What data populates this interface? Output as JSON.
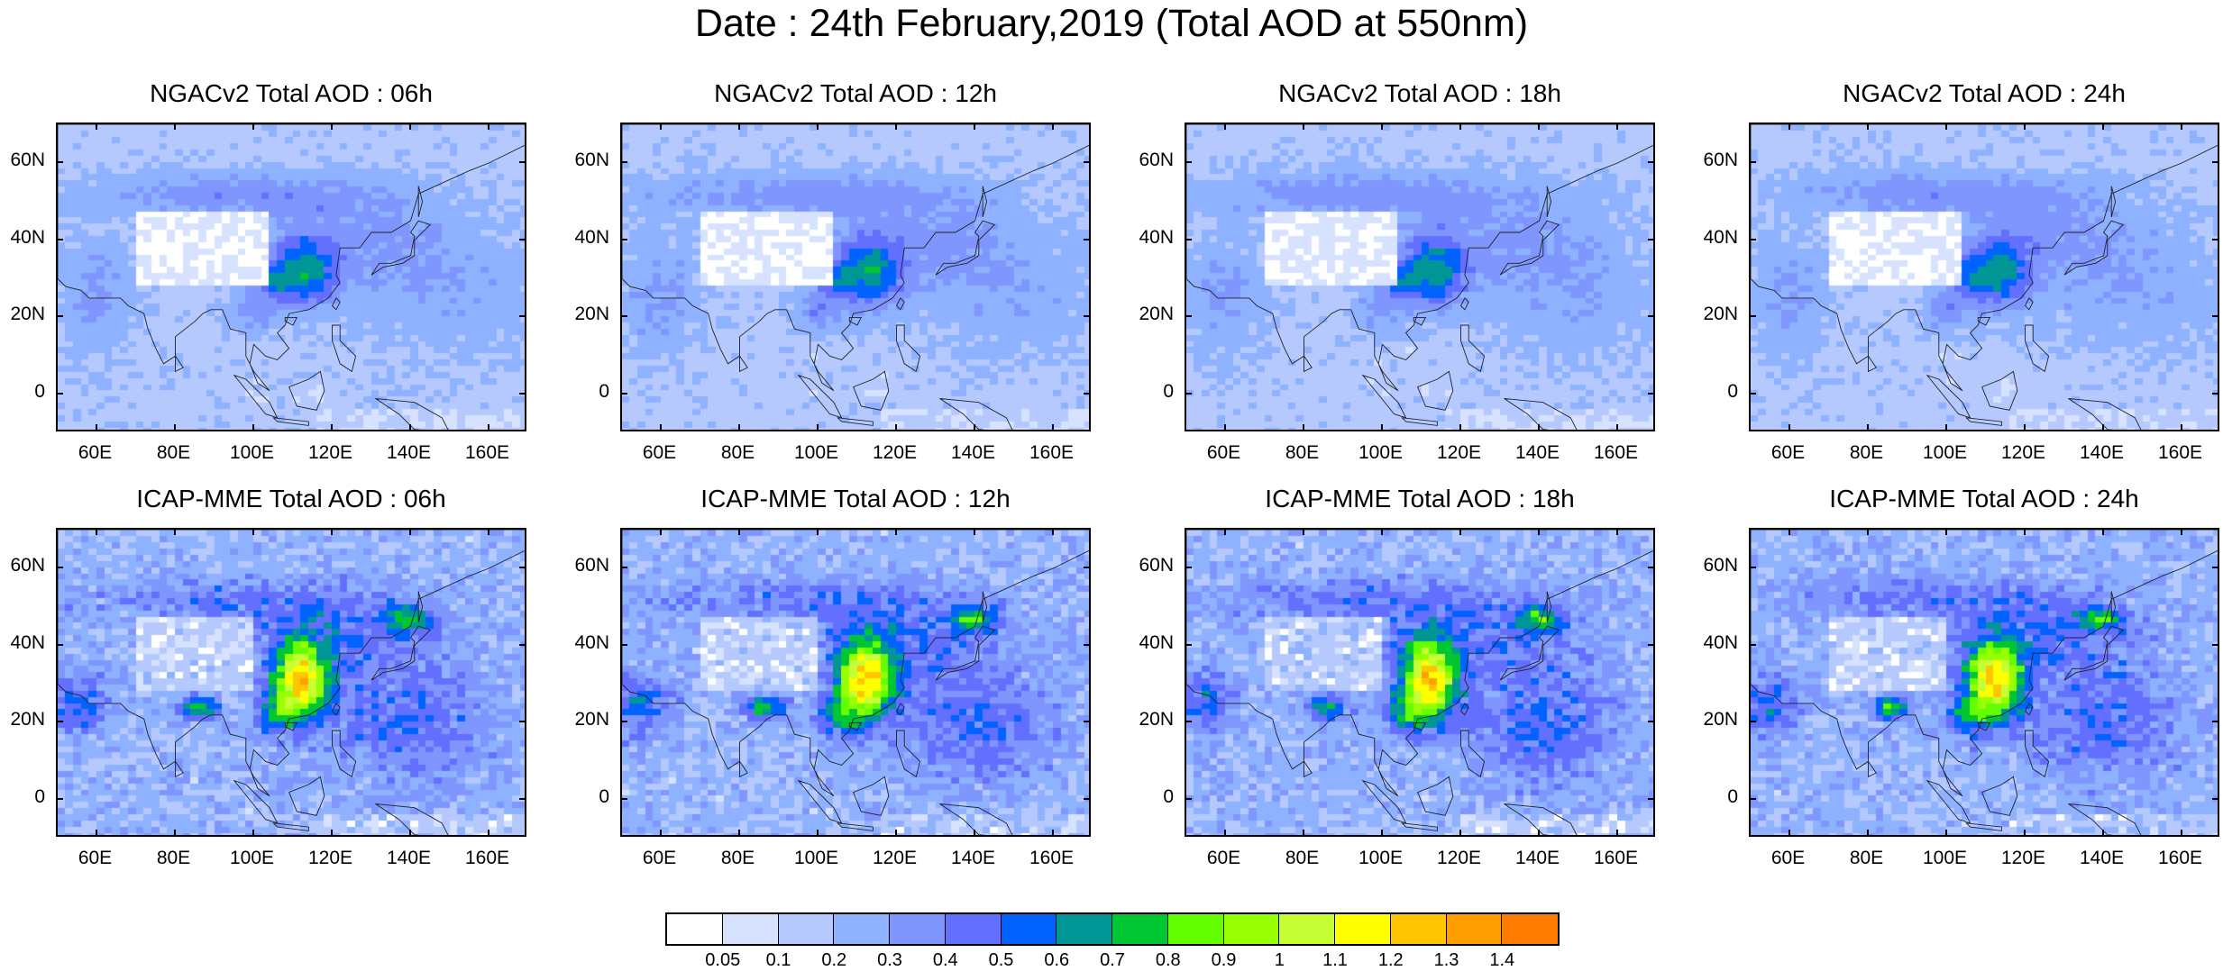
{
  "title": "Date : 24th February,2019 (Total AOD at 550nm)",
  "panels": [
    {
      "title": "NGACv2 Total AOD : 06h",
      "model": "NGACv2",
      "hour": "06h"
    },
    {
      "title": "NGACv2 Total AOD : 12h",
      "model": "NGACv2",
      "hour": "12h"
    },
    {
      "title": "NGACv2 Total AOD : 18h",
      "model": "NGACv2",
      "hour": "18h"
    },
    {
      "title": "NGACv2 Total AOD : 24h",
      "model": "NGACv2",
      "hour": "24h"
    },
    {
      "title": "ICAP-MME Total AOD : 06h",
      "model": "ICAP-MME",
      "hour": "06h"
    },
    {
      "title": "ICAP-MME Total AOD : 12h",
      "model": "ICAP-MME",
      "hour": "12h"
    },
    {
      "title": "ICAP-MME Total AOD : 18h",
      "model": "ICAP-MME",
      "hour": "18h"
    },
    {
      "title": "ICAP-MME Total AOD : 24h",
      "model": "ICAP-MME",
      "hour": "24h"
    }
  ],
  "map_extent": {
    "lon": [
      50,
      170
    ],
    "lat": [
      -10,
      70
    ]
  },
  "x_ticks": [
    "60E",
    "80E",
    "100E",
    "120E",
    "140E",
    "160E"
  ],
  "x_tick_values": [
    60,
    80,
    100,
    120,
    140,
    160
  ],
  "y_ticks": [
    "60N",
    "40N",
    "20N",
    "0"
  ],
  "y_tick_values": [
    60,
    40,
    20,
    0
  ],
  "colorbar": {
    "labels": [
      "0.05",
      "0.1",
      "0.2",
      "0.3",
      "0.4",
      "0.5",
      "0.6",
      "0.7",
      "0.8",
      "0.9",
      "1",
      "1.1",
      "1.2",
      "1.3",
      "1.4"
    ],
    "colors": [
      "#ffffff",
      "#d6e2ff",
      "#b5c9ff",
      "#8eb2ff",
      "#7f96ff",
      "#6370ff",
      "#0063ff",
      "#009696",
      "#00c633",
      "#63ff00",
      "#96ff00",
      "#c6ff33",
      "#ffff00",
      "#ffc600",
      "#ffa000",
      "#ff7c00",
      "#ff1900"
    ]
  }
}
